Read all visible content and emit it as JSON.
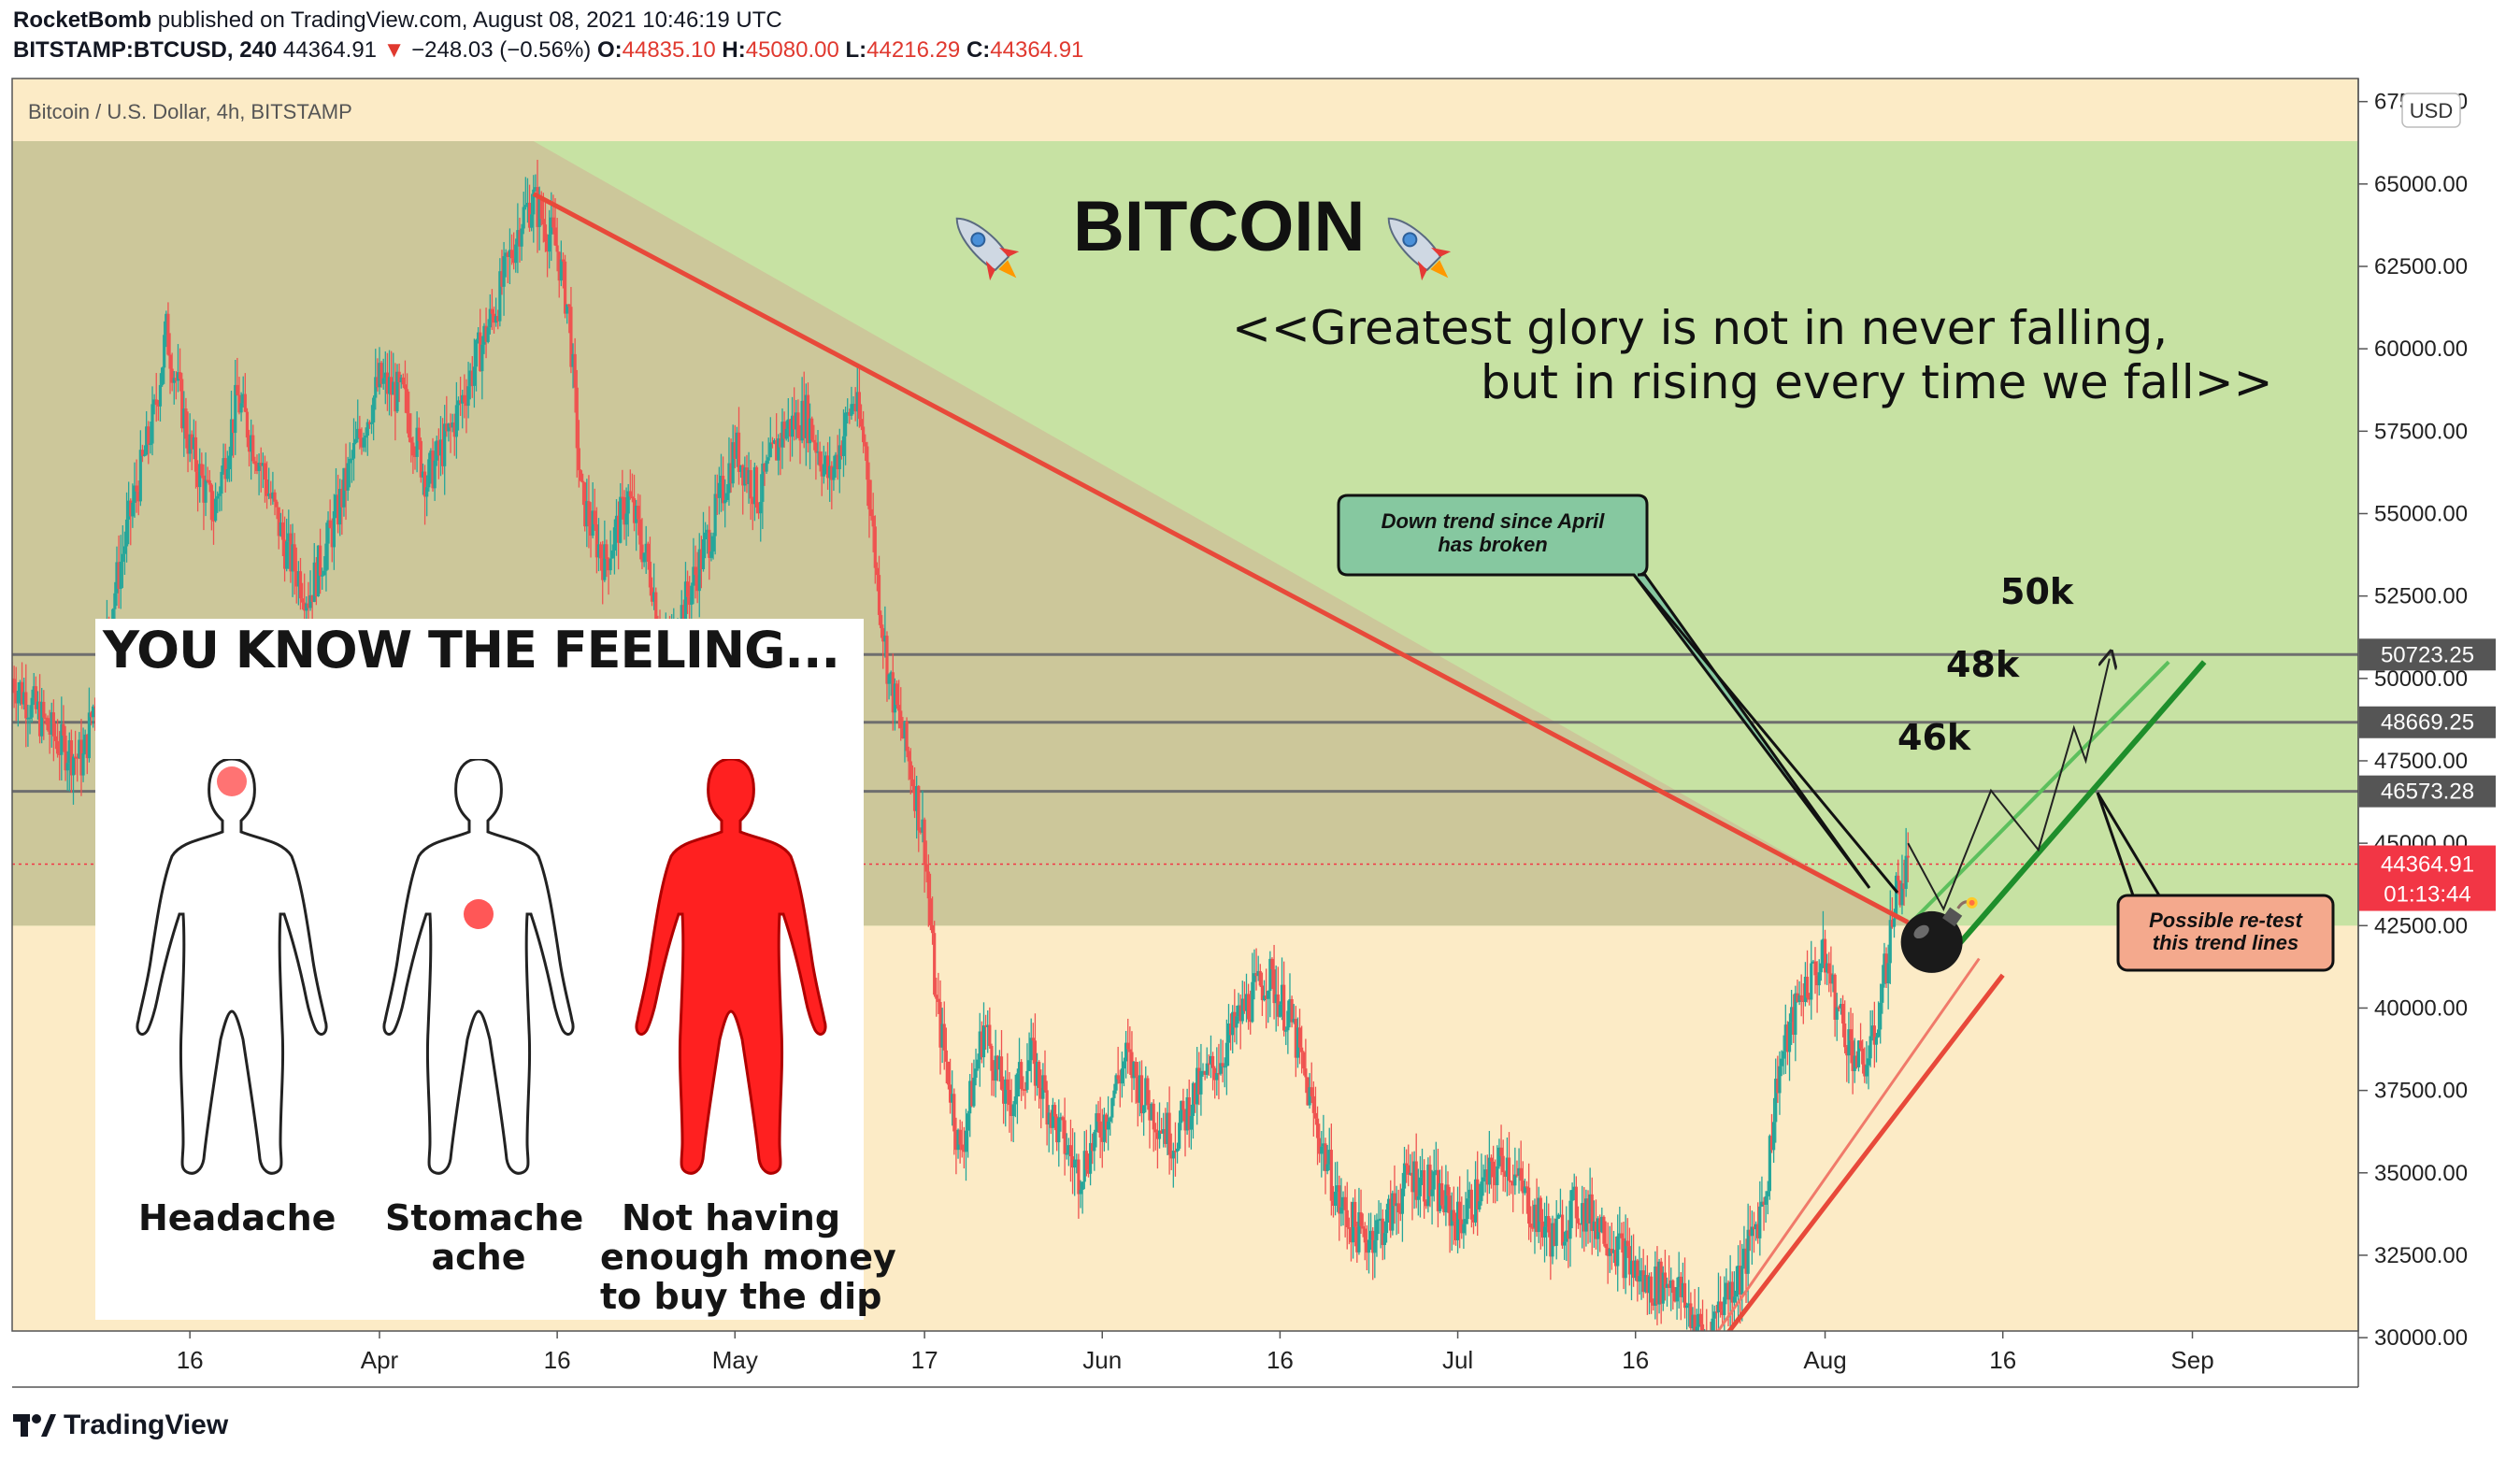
{
  "header": {
    "author": "RocketBomb",
    "published": "published on TradingView.com, August 08, 2021 10:46:19 UTC",
    "symbol": "BITSTAMP:BTCUSD, 240",
    "last": "44364.91",
    "change": "−248.03 (−0.56%)",
    "o_label": "O:",
    "o": "44835.10",
    "h_label": "H:",
    "h": "45080.00",
    "l_label": "L:",
    "l": "44216.29",
    "c_label": "C:",
    "c": "44364.91"
  },
  "chart_title": "Bitcoin / U.S. Dollar, 4h, BITSTAMP",
  "currency_badge": "USD",
  "headline": "BITCOIN",
  "quote_line1": "<<Greatest glory is not in never falling,",
  "quote_line2": "but in rising every time we fall>>",
  "callout_downtrend": {
    "line1": "Down trend since April",
    "line2": "has broken"
  },
  "callout_retest": {
    "line1": "Possible re-test",
    "line2": "this trend lines"
  },
  "targets": {
    "t46": "46k",
    "t48": "48k",
    "t50": "50k"
  },
  "meme": {
    "title": "YOU KNOW THE FEELING...",
    "cap1": "Headache",
    "cap2a": "Stomache",
    "cap2b": "ache",
    "cap3a": "Not having",
    "cap3b": "enough money",
    "cap3c": "to buy the dip"
  },
  "footer_brand": "TradingView",
  "price_tags": {
    "current": "44364.91",
    "countdown": "01:13:44",
    "level1": "50723.25",
    "level2": "48669.25",
    "level3": "46573.28"
  },
  "colors": {
    "green_zone": "#c7e2a3",
    "olive_zone": "#ccc79a",
    "beige_zone": "#fcebc6",
    "downtrend_line": "#e8493a",
    "support_line": "#f07a6a",
    "green_trend": "#1e8e2b",
    "candle_up": "#26a69a",
    "candle_down": "#ef5350",
    "callout_green": "#86c8a0",
    "callout_red": "#f4a98d",
    "last_price": "#f23645"
  },
  "chart_data": {
    "type": "candlestick",
    "title": "Bitcoin / U.S. Dollar, 4h, BITSTAMP",
    "ylabel": "USD",
    "ylim": [
      28500,
      68200
    ],
    "y_ticks": [
      30000,
      32500,
      35000,
      37500,
      40000,
      42500,
      45000,
      47500,
      50000,
      52500,
      55000,
      57500,
      60000,
      62500,
      65000,
      67500
    ],
    "y_tick_labels": [
      "30000.00",
      "32500.00",
      "35000.00",
      "37500.00",
      "40000.00",
      "42500.00",
      "45000.00",
      "47500.00",
      "50000.00",
      "52500.00",
      "55000.00",
      "57500.00",
      "60000.00",
      "62500.00",
      "65000.00",
      "67500.00"
    ],
    "x_ticks": [
      "16",
      "Apr",
      "16",
      "May",
      "17",
      "Jun",
      "16",
      "Jul",
      "16",
      "Aug",
      "16",
      "Sep"
    ],
    "x_tick_days": [
      15,
      31,
      46,
      61,
      77,
      92,
      107,
      122,
      137,
      153,
      168,
      184
    ],
    "x_range_days": [
      0,
      198
    ],
    "price_path": [
      [
        0,
        50000
      ],
      [
        4,
        48000
      ],
      [
        6,
        47500
      ],
      [
        8,
        51500
      ],
      [
        10,
        55000
      ],
      [
        12,
        58000
      ],
      [
        13,
        60500
      ],
      [
        15,
        57000
      ],
      [
        17,
        55000
      ],
      [
        19,
        58500
      ],
      [
        21,
        56500
      ],
      [
        23,
        54000
      ],
      [
        25,
        52500
      ],
      [
        27,
        54500
      ],
      [
        29,
        57000
      ],
      [
        31,
        59000
      ],
      [
        33,
        58500
      ],
      [
        35,
        56000
      ],
      [
        37,
        57500
      ],
      [
        39,
        59500
      ],
      [
        41,
        61500
      ],
      [
        43,
        64000
      ],
      [
        44,
        64500
      ],
      [
        46,
        63000
      ],
      [
        47,
        61000
      ],
      [
        48,
        55500
      ],
      [
        50,
        53500
      ],
      [
        52,
        55500
      ],
      [
        54,
        53000
      ],
      [
        55,
        50500
      ],
      [
        57,
        52500
      ],
      [
        59,
        54500
      ],
      [
        61,
        57000
      ],
      [
        63,
        55500
      ],
      [
        65,
        57500
      ],
      [
        67,
        58000
      ],
      [
        69,
        56000
      ],
      [
        71,
        58500
      ],
      [
        72,
        57000
      ],
      [
        73,
        53000
      ],
      [
        74,
        50000
      ],
      [
        76,
        47000
      ],
      [
        77,
        45000
      ],
      [
        78,
        40000
      ],
      [
        79,
        38000
      ],
      [
        80,
        35500
      ],
      [
        81,
        37500
      ],
      [
        82,
        39500
      ],
      [
        84,
        37000
      ],
      [
        86,
        38500
      ],
      [
        88,
        36500
      ],
      [
        90,
        35000
      ],
      [
        92,
        36500
      ],
      [
        94,
        38500
      ],
      [
        96,
        37000
      ],
      [
        98,
        36000
      ],
      [
        100,
        37500
      ],
      [
        102,
        38500
      ],
      [
        104,
        40000
      ],
      [
        106,
        41000
      ],
      [
        108,
        39500
      ],
      [
        110,
        36500
      ],
      [
        112,
        34000
      ],
      [
        114,
        33000
      ],
      [
        116,
        33500
      ],
      [
        118,
        35000
      ],
      [
        120,
        34500
      ],
      [
        122,
        33500
      ],
      [
        124,
        34500
      ],
      [
        126,
        35500
      ],
      [
        128,
        34000
      ],
      [
        130,
        33000
      ],
      [
        132,
        34000
      ],
      [
        134,
        33500
      ],
      [
        136,
        32500
      ],
      [
        138,
        31500
      ],
      [
        140,
        31800
      ],
      [
        142,
        30500
      ],
      [
        143,
        29800
      ],
      [
        144,
        31000
      ],
      [
        146,
        32000
      ],
      [
        148,
        34500
      ],
      [
        149,
        38000
      ],
      [
        151,
        40500
      ],
      [
        153,
        41500
      ],
      [
        154,
        40000
      ],
      [
        155,
        39000
      ],
      [
        156,
        38200
      ],
      [
        157,
        38800
      ],
      [
        158,
        41000
      ],
      [
        159,
        43500
      ],
      [
        160,
        44300
      ]
    ],
    "key_levels": [
      {
        "price": 50723.25,
        "label": "50723.25"
      },
      {
        "price": 48669.25,
        "label": "48669.25"
      },
      {
        "price": 46573.28,
        "label": "46573.28"
      }
    ],
    "last_price": 44364.91,
    "last_close": 44364.91,
    "zones": [
      {
        "name": "green",
        "from_day": 0,
        "to_day": 198,
        "price_top": 66300,
        "price_bottom": 42500
      },
      {
        "name": "beige",
        "from_day": 0,
        "to_day": 198,
        "price_top": 42500,
        "price_bottom": 29000
      }
    ],
    "downtrend_line": {
      "from": [
        44,
        64700
      ],
      "to": [
        160,
        42600
      ]
    },
    "support_lines": [
      {
        "from": [
          143,
          29300
        ],
        "to": [
          168,
          41000
        ]
      },
      {
        "from": [
          143,
          29700
        ],
        "to": [
          166,
          41500
        ]
      }
    ],
    "uptrend_lines_green": [
      {
        "from": [
          160,
          42500
        ],
        "to": [
          182,
          50500
        ]
      },
      {
        "from": [
          163,
          41400
        ],
        "to": [
          185,
          50500
        ]
      }
    ],
    "projection_path": [
      [
        160,
        45000
      ],
      [
        163,
        43000
      ],
      [
        167,
        46600
      ],
      [
        171,
        44800
      ],
      [
        174,
        48500
      ],
      [
        175,
        47500
      ],
      [
        177,
        50600
      ]
    ],
    "bomb_at": [
      162,
      42000
    ]
  }
}
